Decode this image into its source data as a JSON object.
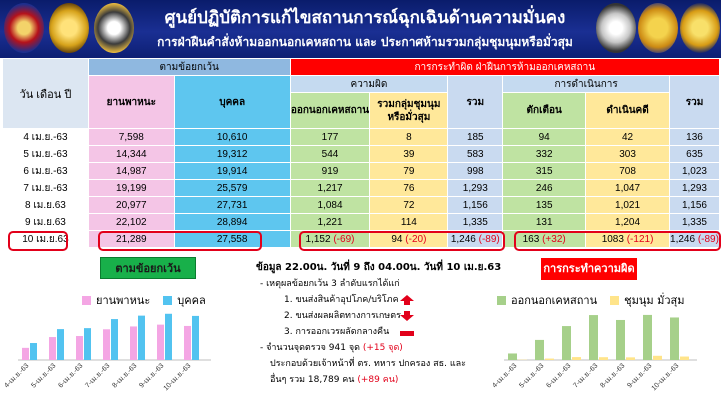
{
  "header": {
    "title": "ศูนย์ปฏิบัติการแก้ไขสถานการณ์ฉุกเฉินด้านความมั่นคง",
    "subtitle": "การฝ่าฝืนคำสั่งห้ามออกนอกเคหสถาน และ ประกาศห้ามรวมกลุ่มชุมนุมหรือมั่วสุม"
  },
  "table": {
    "date_header": "วัน เดือน ปี",
    "group_checkpoints": "ตามข้อยกเว้น",
    "group_violations": "การกระทำผิด ฝ่าฝืนการห้ามออกเคหสถาน",
    "sub_offense": "ความผิด",
    "sub_action": "การดำเนินการ",
    "col_vehicle": "ยานพาหนะ",
    "col_person": "บุคคล",
    "col_outside": "ออกนอกเคหสถาน",
    "col_gather": "รวมกลุ่มชุมนุม หรือมั่วสุม",
    "col_total1": "รวม",
    "col_warn": "ตักเตือน",
    "col_prosecute": "ดำเนินคดี",
    "col_total2": "รวม",
    "rows": [
      {
        "date": "4 เม.ย.-63",
        "vehicle": "7,598",
        "person": "10,610",
        "outside": "177",
        "gather": "8",
        "total1": "185",
        "warn": "94",
        "prosecute": "42",
        "total2": "136"
      },
      {
        "date": "5 เม.ย.-63",
        "vehicle": "14,344",
        "person": "19,312",
        "outside": "544",
        "gather": "39",
        "total1": "583",
        "warn": "332",
        "prosecute": "303",
        "total2": "635"
      },
      {
        "date": "6 เม.ย.-63",
        "vehicle": "14,987",
        "person": "19,914",
        "outside": "919",
        "gather": "79",
        "total1": "998",
        "warn": "315",
        "prosecute": "708",
        "total2": "1,023"
      },
      {
        "date": "7 เม.ย.-63",
        "vehicle": "19,199",
        "person": "25,579",
        "outside": "1,217",
        "gather": "76",
        "total1": "1,293",
        "warn": "246",
        "prosecute": "1,047",
        "total2": "1,293"
      },
      {
        "date": "8 เม.ย.63",
        "vehicle": "20,977",
        "person": "27,731",
        "outside": "1,084",
        "gather": "72",
        "total1": "1,156",
        "warn": "135",
        "prosecute": "1,021",
        "total2": "1,156"
      },
      {
        "date": "9 เม.ย.63",
        "vehicle": "22,102",
        "person": "28,894",
        "outside": "1,221",
        "gather": "114",
        "total1": "1,335",
        "warn": "131",
        "prosecute": "1,204",
        "total2": "1,335"
      }
    ],
    "last_row": {
      "date": "10 เม.ย.63",
      "vehicle": "21,289",
      "person": "27,558",
      "outside": "1,152",
      "outside_delta": "(-69)",
      "gather": "94",
      "gather_delta": "(-20)",
      "total1": "1,246",
      "total1_delta": "(-89)",
      "warn": "163",
      "warn_delta": "(+32)",
      "prosecute": "1083",
      "prosecute_delta": "(-121)",
      "total2": "1,246",
      "total2_delta": "(-89)"
    }
  },
  "summary": {
    "line1": "ข้อมูล 22.00น. วันที่ 9 ถึง 04.00น. วันที่ 10 เม.ย.63",
    "line2": "- เหตุผลข้อยกเว้น 3 ลำดับแรกได้แก่",
    "item1": "1. ขนส่งสินค้าอุปโภค/บริโภค",
    "item2": "2. ขนส่งผลผลิตทางการเกษตร",
    "item3": "3. การออกเวรผลัดกลางคืน",
    "checkpoints": "- จำนวนจุดตรวจ 941 จุด",
    "checkpoints_delta": "(+15 จุด)",
    "officers1": "ประกอบด้วยเจ้าหน้าที่ ตร. ทหาร ปกครอง สธ. และ",
    "officers2": "อื่นๆ รวม 18,789 คน",
    "officers_delta": "(+89 คน)"
  },
  "chart_data": [
    {
      "type": "bar",
      "title": "ตามข้อยกเว้น",
      "categories": [
        "4-เม.ย.-63",
        "5-เม.ย.-63",
        "6-เม.ย.-63",
        "7-เม.ย.-63",
        "8-เม.ย.-63",
        "9-เม.ย.-63",
        "10-เม.ย.-63"
      ],
      "series": [
        {
          "name": "ยานพาหนะ",
          "values": [
            7598,
            14344,
            14987,
            19199,
            20977,
            22102,
            21289
          ],
          "color": "#f4a6e4"
        },
        {
          "name": "บุคคล",
          "values": [
            10610,
            19312,
            19914,
            25579,
            27731,
            28894,
            27558
          ],
          "color": "#52c3f0"
        }
      ],
      "ylim": [
        0,
        30000
      ],
      "legend": "top"
    },
    {
      "type": "bar",
      "title": "การกระทำความผิด",
      "categories": [
        "4-เม.ย.-63",
        "5-เม.ย.-63",
        "6-เม.ย.-63",
        "7-เม.ย.-63",
        "8-เม.ย.-63",
        "9-เม.ย.-63",
        "10-เม.ย.-63"
      ],
      "series": [
        {
          "name": "ออกนอกเคหสถาน",
          "values": [
            177,
            544,
            919,
            1217,
            1084,
            1221,
            1152
          ],
          "color": "#a6d08a"
        },
        {
          "name": "ชุมนุม มั่วสุม",
          "values": [
            8,
            39,
            79,
            76,
            72,
            114,
            94
          ],
          "color": "#ffe48a"
        }
      ],
      "ylim": [
        0,
        1300
      ],
      "legend": "top"
    }
  ]
}
